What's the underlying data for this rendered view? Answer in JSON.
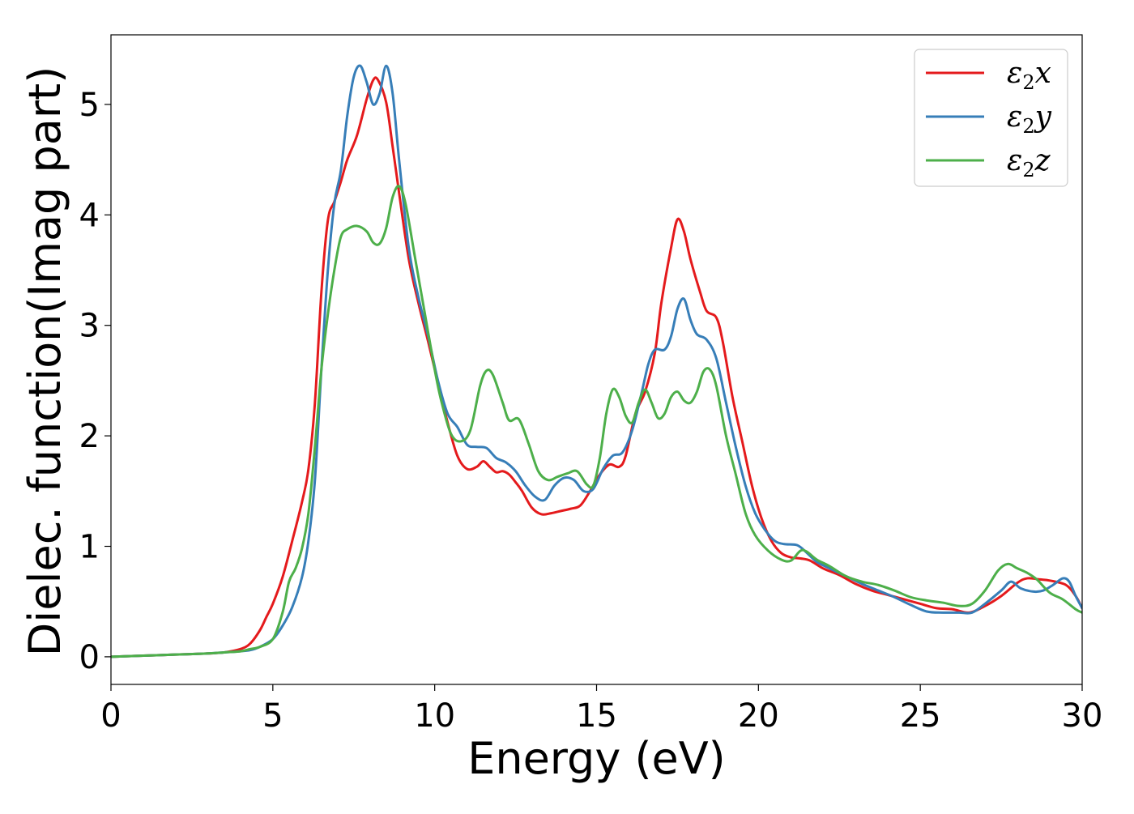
{
  "chart_data": {
    "type": "line",
    "xlabel": "Energy (eV)",
    "ylabel": "Dielec. function(Imag part)",
    "xlim": [
      0,
      30
    ],
    "ylim": [
      -0.25,
      5.63
    ],
    "xticks": [
      0,
      5,
      10,
      15,
      20,
      25,
      30
    ],
    "yticks": [
      0,
      1,
      2,
      3,
      4,
      5
    ],
    "grid": false,
    "legend_position": "top-right",
    "series": [
      {
        "name": "ε2x",
        "legend": {
          "base": "ε",
          "sub": "2",
          "var": "x"
        },
        "color": "#e41a1c",
        "points": [
          [
            0,
            0
          ],
          [
            1,
            0.01
          ],
          [
            2,
            0.02
          ],
          [
            3,
            0.03
          ],
          [
            3.5,
            0.04
          ],
          [
            4,
            0.07
          ],
          [
            4.3,
            0.12
          ],
          [
            4.6,
            0.24
          ],
          [
            4.8,
            0.36
          ],
          [
            5,
            0.48
          ],
          [
            5.3,
            0.72
          ],
          [
            5.6,
            1.05
          ],
          [
            5.9,
            1.4
          ],
          [
            6.1,
            1.7
          ],
          [
            6.3,
            2.3
          ],
          [
            6.5,
            3.3
          ],
          [
            6.7,
            3.95
          ],
          [
            6.9,
            4.12
          ],
          [
            7.1,
            4.3
          ],
          [
            7.3,
            4.5
          ],
          [
            7.6,
            4.72
          ],
          [
            7.9,
            5.05
          ],
          [
            8.1,
            5.22
          ],
          [
            8.25,
            5.22
          ],
          [
            8.5,
            5.02
          ],
          [
            8.7,
            4.62
          ],
          [
            8.9,
            4.2
          ],
          [
            9.2,
            3.6
          ],
          [
            9.5,
            3.2
          ],
          [
            9.8,
            2.85
          ],
          [
            10.1,
            2.48
          ],
          [
            10.4,
            2.12
          ],
          [
            10.7,
            1.82
          ],
          [
            11,
            1.7
          ],
          [
            11.3,
            1.72
          ],
          [
            11.5,
            1.77
          ],
          [
            11.7,
            1.72
          ],
          [
            11.9,
            1.67
          ],
          [
            12.1,
            1.68
          ],
          [
            12.3,
            1.65
          ],
          [
            12.5,
            1.58
          ],
          [
            12.7,
            1.5
          ],
          [
            13,
            1.35
          ],
          [
            13.3,
            1.29
          ],
          [
            13.6,
            1.3
          ],
          [
            13.9,
            1.32
          ],
          [
            14.2,
            1.34
          ],
          [
            14.5,
            1.37
          ],
          [
            14.8,
            1.5
          ],
          [
            15.1,
            1.65
          ],
          [
            15.4,
            1.74
          ],
          [
            15.7,
            1.72
          ],
          [
            15.9,
            1.82
          ],
          [
            16.2,
            2.2
          ],
          [
            16.5,
            2.4
          ],
          [
            16.8,
            2.75
          ],
          [
            17,
            3.2
          ],
          [
            17.3,
            3.7
          ],
          [
            17.5,
            3.96
          ],
          [
            17.7,
            3.85
          ],
          [
            17.9,
            3.6
          ],
          [
            18.2,
            3.3
          ],
          [
            18.4,
            3.13
          ],
          [
            18.7,
            3.07
          ],
          [
            18.9,
            2.85
          ],
          [
            19.2,
            2.35
          ],
          [
            19.5,
            1.95
          ],
          [
            19.8,
            1.55
          ],
          [
            20.1,
            1.25
          ],
          [
            20.4,
            1.05
          ],
          [
            20.7,
            0.94
          ],
          [
            21,
            0.9
          ],
          [
            21.3,
            0.89
          ],
          [
            21.6,
            0.87
          ],
          [
            22,
            0.8
          ],
          [
            22.5,
            0.74
          ],
          [
            23,
            0.66
          ],
          [
            23.5,
            0.6
          ],
          [
            24,
            0.56
          ],
          [
            24.5,
            0.52
          ],
          [
            25,
            0.48
          ],
          [
            25.5,
            0.44
          ],
          [
            26,
            0.43
          ],
          [
            26.5,
            0.4
          ],
          [
            27,
            0.46
          ],
          [
            27.5,
            0.55
          ],
          [
            28,
            0.67
          ],
          [
            28.3,
            0.71
          ],
          [
            28.7,
            0.7
          ],
          [
            29,
            0.69
          ],
          [
            29.5,
            0.65
          ],
          [
            29.8,
            0.55
          ],
          [
            30,
            0.44
          ]
        ]
      },
      {
        "name": "ε2y",
        "legend": {
          "base": "ε",
          "sub": "2",
          "var": "y"
        },
        "color": "#377eb8",
        "points": [
          [
            0,
            0
          ],
          [
            1,
            0.01
          ],
          [
            2,
            0.02
          ],
          [
            3,
            0.03
          ],
          [
            3.5,
            0.04
          ],
          [
            4,
            0.05
          ],
          [
            4.3,
            0.06
          ],
          [
            4.6,
            0.09
          ],
          [
            5,
            0.16
          ],
          [
            5.3,
            0.28
          ],
          [
            5.6,
            0.45
          ],
          [
            5.9,
            0.72
          ],
          [
            6.1,
            1.05
          ],
          [
            6.3,
            1.6
          ],
          [
            6.5,
            2.6
          ],
          [
            6.7,
            3.5
          ],
          [
            6.9,
            4.1
          ],
          [
            7.1,
            4.4
          ],
          [
            7.3,
            4.9
          ],
          [
            7.5,
            5.25
          ],
          [
            7.7,
            5.35
          ],
          [
            7.9,
            5.2
          ],
          [
            8.1,
            5.0
          ],
          [
            8.3,
            5.1
          ],
          [
            8.5,
            5.35
          ],
          [
            8.7,
            5.1
          ],
          [
            8.9,
            4.5
          ],
          [
            9.2,
            3.7
          ],
          [
            9.5,
            3.25
          ],
          [
            9.8,
            2.9
          ],
          [
            10.1,
            2.5
          ],
          [
            10.4,
            2.2
          ],
          [
            10.7,
            2.08
          ],
          [
            11,
            1.92
          ],
          [
            11.3,
            1.9
          ],
          [
            11.6,
            1.89
          ],
          [
            11.9,
            1.8
          ],
          [
            12.2,
            1.76
          ],
          [
            12.5,
            1.68
          ],
          [
            12.8,
            1.55
          ],
          [
            13.1,
            1.45
          ],
          [
            13.4,
            1.42
          ],
          [
            13.7,
            1.55
          ],
          [
            14,
            1.62
          ],
          [
            14.3,
            1.6
          ],
          [
            14.6,
            1.5
          ],
          [
            14.9,
            1.52
          ],
          [
            15.2,
            1.7
          ],
          [
            15.5,
            1.82
          ],
          [
            15.8,
            1.85
          ],
          [
            16.1,
            2.05
          ],
          [
            16.4,
            2.4
          ],
          [
            16.6,
            2.65
          ],
          [
            16.8,
            2.78
          ],
          [
            17.1,
            2.78
          ],
          [
            17.3,
            2.9
          ],
          [
            17.5,
            3.15
          ],
          [
            17.7,
            3.24
          ],
          [
            17.9,
            3.05
          ],
          [
            18.1,
            2.92
          ],
          [
            18.4,
            2.87
          ],
          [
            18.7,
            2.7
          ],
          [
            19,
            2.3
          ],
          [
            19.3,
            1.9
          ],
          [
            19.6,
            1.55
          ],
          [
            19.9,
            1.3
          ],
          [
            20.2,
            1.15
          ],
          [
            20.5,
            1.05
          ],
          [
            20.8,
            1.02
          ],
          [
            21.2,
            1.01
          ],
          [
            21.5,
            0.94
          ],
          [
            21.8,
            0.86
          ],
          [
            22.2,
            0.8
          ],
          [
            22.7,
            0.73
          ],
          [
            23.2,
            0.66
          ],
          [
            23.7,
            0.6
          ],
          [
            24.2,
            0.54
          ],
          [
            24.7,
            0.47
          ],
          [
            25.2,
            0.41
          ],
          [
            25.7,
            0.4
          ],
          [
            26.2,
            0.4
          ],
          [
            26.6,
            0.4
          ],
          [
            27,
            0.48
          ],
          [
            27.5,
            0.6
          ],
          [
            27.8,
            0.68
          ],
          [
            28.1,
            0.62
          ],
          [
            28.5,
            0.59
          ],
          [
            28.8,
            0.6
          ],
          [
            29.1,
            0.65
          ],
          [
            29.4,
            0.71
          ],
          [
            29.6,
            0.68
          ],
          [
            29.8,
            0.55
          ],
          [
            30,
            0.44
          ]
        ]
      },
      {
        "name": "ε2z",
        "legend": {
          "base": "ε",
          "sub": "2",
          "var": "z"
        },
        "color": "#4daf4a",
        "points": [
          [
            0,
            0
          ],
          [
            1,
            0.01
          ],
          [
            2,
            0.02
          ],
          [
            3,
            0.03
          ],
          [
            3.5,
            0.04
          ],
          [
            4,
            0.05
          ],
          [
            4.3,
            0.07
          ],
          [
            4.6,
            0.09
          ],
          [
            5,
            0.16
          ],
          [
            5.3,
            0.4
          ],
          [
            5.5,
            0.68
          ],
          [
            5.7,
            0.8
          ],
          [
            5.9,
            0.98
          ],
          [
            6.1,
            1.3
          ],
          [
            6.3,
            1.9
          ],
          [
            6.5,
            2.6
          ],
          [
            6.7,
            3.1
          ],
          [
            6.9,
            3.5
          ],
          [
            7.1,
            3.8
          ],
          [
            7.3,
            3.87
          ],
          [
            7.6,
            3.9
          ],
          [
            7.9,
            3.85
          ],
          [
            8.1,
            3.75
          ],
          [
            8.3,
            3.74
          ],
          [
            8.5,
            3.88
          ],
          [
            8.7,
            4.16
          ],
          [
            8.9,
            4.26
          ],
          [
            9.1,
            4.1
          ],
          [
            9.4,
            3.6
          ],
          [
            9.7,
            3.1
          ],
          [
            10,
            2.6
          ],
          [
            10.2,
            2.32
          ],
          [
            10.5,
            2.02
          ],
          [
            10.8,
            1.95
          ],
          [
            11.1,
            2.05
          ],
          [
            11.4,
            2.45
          ],
          [
            11.6,
            2.59
          ],
          [
            11.8,
            2.55
          ],
          [
            12.1,
            2.3
          ],
          [
            12.3,
            2.14
          ],
          [
            12.6,
            2.15
          ],
          [
            12.9,
            1.93
          ],
          [
            13.2,
            1.68
          ],
          [
            13.5,
            1.6
          ],
          [
            13.8,
            1.63
          ],
          [
            14.1,
            1.66
          ],
          [
            14.4,
            1.68
          ],
          [
            14.7,
            1.56
          ],
          [
            14.9,
            1.55
          ],
          [
            15.1,
            1.8
          ],
          [
            15.3,
            2.2
          ],
          [
            15.5,
            2.42
          ],
          [
            15.7,
            2.35
          ],
          [
            15.9,
            2.18
          ],
          [
            16.1,
            2.12
          ],
          [
            16.3,
            2.3
          ],
          [
            16.5,
            2.42
          ],
          [
            16.7,
            2.3
          ],
          [
            16.9,
            2.16
          ],
          [
            17.1,
            2.2
          ],
          [
            17.3,
            2.35
          ],
          [
            17.5,
            2.4
          ],
          [
            17.7,
            2.32
          ],
          [
            17.9,
            2.3
          ],
          [
            18.1,
            2.4
          ],
          [
            18.3,
            2.58
          ],
          [
            18.5,
            2.6
          ],
          [
            18.7,
            2.45
          ],
          [
            19,
            2.0
          ],
          [
            19.3,
            1.65
          ],
          [
            19.6,
            1.3
          ],
          [
            19.9,
            1.1
          ],
          [
            20.3,
            0.96
          ],
          [
            20.7,
            0.88
          ],
          [
            21,
            0.87
          ],
          [
            21.3,
            0.96
          ],
          [
            21.5,
            0.95
          ],
          [
            21.8,
            0.88
          ],
          [
            22.2,
            0.82
          ],
          [
            22.7,
            0.73
          ],
          [
            23.2,
            0.68
          ],
          [
            23.7,
            0.65
          ],
          [
            24.2,
            0.6
          ],
          [
            24.7,
            0.54
          ],
          [
            25.2,
            0.51
          ],
          [
            25.7,
            0.49
          ],
          [
            26.2,
            0.46
          ],
          [
            26.6,
            0.48
          ],
          [
            27,
            0.6
          ],
          [
            27.4,
            0.78
          ],
          [
            27.7,
            0.84
          ],
          [
            28,
            0.8
          ],
          [
            28.3,
            0.76
          ],
          [
            28.6,
            0.7
          ],
          [
            29,
            0.58
          ],
          [
            29.4,
            0.52
          ],
          [
            29.8,
            0.43
          ],
          [
            30,
            0.4
          ]
        ]
      }
    ]
  }
}
